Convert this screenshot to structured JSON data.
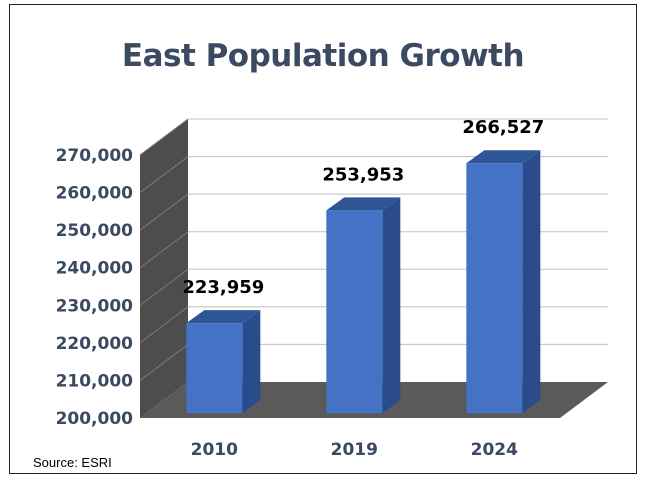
{
  "chart_data": {
    "type": "bar",
    "title": "East Population Growth",
    "categories": [
      "2010",
      "2019",
      "2024"
    ],
    "values": [
      223959,
      253953,
      266527
    ],
    "data_labels": [
      "223,959",
      "253,953",
      "266,527"
    ],
    "ylim": [
      200000,
      270000
    ],
    "yticks": [
      "200,000",
      "210,000",
      "220,000",
      "230,000",
      "240,000",
      "250,000",
      "260,000",
      "270,000"
    ],
    "xlabel": "",
    "ylabel": "",
    "grid": true,
    "style": "3d-column",
    "colors": {
      "bar_front": "#4472c4",
      "bar_side": "#2b4c8c",
      "bar_top": "#2f5597",
      "wall": "#4d4d4d",
      "floor": "#5a5a5a",
      "grid": "#bfbfbf",
      "text": "#3b4a60"
    }
  },
  "source": "Source:  ESRI"
}
